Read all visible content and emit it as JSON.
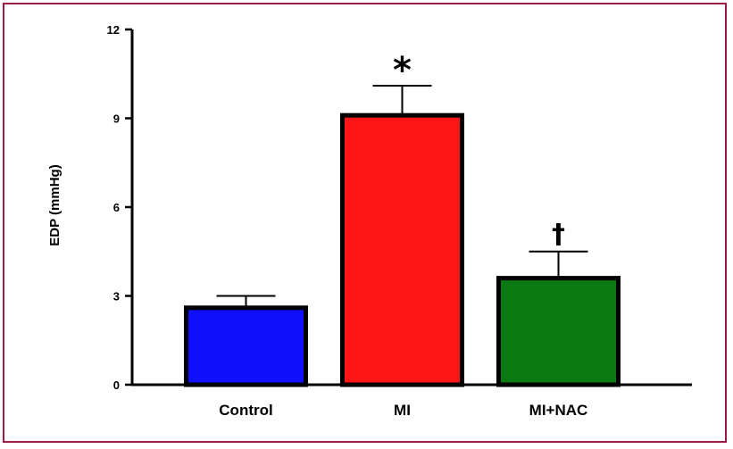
{
  "chart_data": {
    "type": "bar",
    "title": "",
    "xlabel": "",
    "ylabel": "EDP (mmHg)",
    "categories": [
      "Control",
      "MI",
      "MI+NAC"
    ],
    "values": [
      2.6,
      9.1,
      3.6
    ],
    "error_upper": [
      3.0,
      10.1,
      4.5
    ],
    "annotations": [
      "",
      "*",
      "†"
    ],
    "colors": [
      "#1010ff",
      "#ff1515",
      "#0b7a12"
    ],
    "ylim": [
      0,
      12
    ],
    "yticks": [
      0,
      3,
      6,
      9,
      12
    ],
    "grid": false,
    "legend": "none"
  },
  "frame_color": "#9b1c45"
}
